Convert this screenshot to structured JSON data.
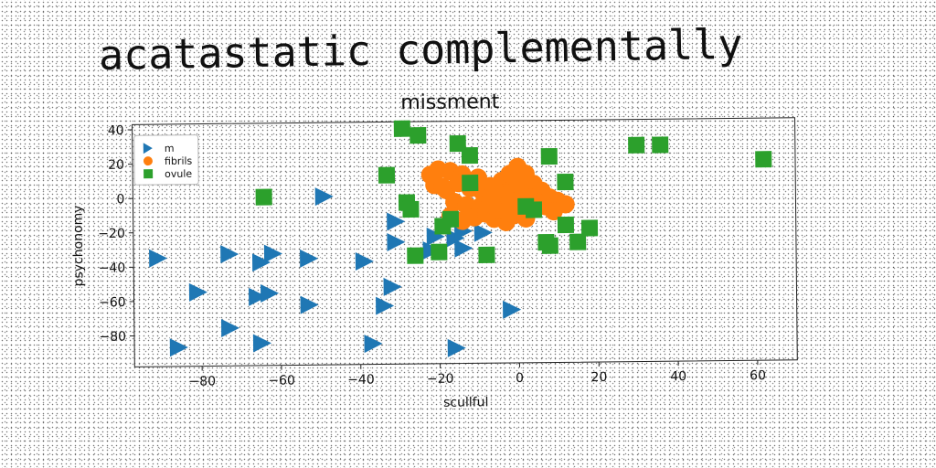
{
  "page_title": "acatastatic complementally",
  "chart_data": {
    "type": "scatter",
    "title": "missment",
    "xlabel": "scullful",
    "ylabel": "psychonomy",
    "xlim": [
      -97,
      70
    ],
    "ylim": [
      -98,
      43
    ],
    "xticks": [
      -80,
      -60,
      -40,
      -20,
      0,
      20,
      40,
      60
    ],
    "yticks": [
      40,
      20,
      0,
      -20,
      -40,
      -60,
      -80
    ],
    "grid": false,
    "legend_position": "top-left",
    "series": [
      {
        "name": "m",
        "marker": "triangle-right",
        "color": "#1f77b4",
        "points": [
          [
            -49,
            0
          ],
          [
            -31,
            -15
          ],
          [
            -31,
            -27
          ],
          [
            -22,
            -32
          ],
          [
            -16,
            -25
          ],
          [
            -14,
            -21
          ],
          [
            -9,
            -22
          ],
          [
            -14,
            -31
          ],
          [
            -91,
            -35
          ],
          [
            -73,
            -33
          ],
          [
            -62,
            -33
          ],
          [
            -65,
            -38
          ],
          [
            -53,
            -36
          ],
          [
            -39,
            -38
          ],
          [
            -81,
            -55
          ],
          [
            -66,
            -58
          ],
          [
            -63,
            -56
          ],
          [
            -32,
            -53
          ],
          [
            -34,
            -64
          ],
          [
            -53,
            -63
          ],
          [
            -73,
            -76
          ],
          [
            -2,
            -67
          ],
          [
            -86,
            -87
          ],
          [
            -65,
            -85
          ],
          [
            -37,
            -86
          ],
          [
            -16,
            -89
          ],
          [
            -21,
            -24
          ]
        ]
      },
      {
        "name": "fibrils",
        "marker": "circle",
        "color": "#ff7f0e",
        "points": [
          [
            -22,
            12
          ],
          [
            -20,
            15
          ],
          [
            -17,
            14
          ],
          [
            -14,
            12
          ],
          [
            -21,
            6
          ],
          [
            -18,
            3
          ],
          [
            -15,
            7
          ],
          [
            -12,
            4
          ],
          [
            -9,
            2
          ],
          [
            -7,
            5
          ],
          [
            -4,
            8
          ],
          [
            -2,
            12
          ],
          [
            0,
            16
          ],
          [
            2,
            12
          ],
          [
            4,
            6
          ],
          [
            6,
            2
          ],
          [
            8,
            -2
          ],
          [
            10,
            -4
          ],
          [
            12,
            -6
          ],
          [
            -16,
            -4
          ],
          [
            -13,
            -6
          ],
          [
            -11,
            -8
          ],
          [
            -9,
            -6
          ],
          [
            -7,
            -3
          ],
          [
            -5,
            -1
          ],
          [
            -3,
            1
          ],
          [
            -1,
            3
          ],
          [
            1,
            0
          ],
          [
            3,
            -2
          ],
          [
            5,
            -5
          ],
          [
            7,
            -7
          ],
          [
            9,
            -10
          ],
          [
            -17,
            -12
          ],
          [
            -14,
            -15
          ],
          [
            -11,
            -13
          ],
          [
            -8,
            -11
          ],
          [
            -6,
            -14
          ],
          [
            -3,
            -16
          ],
          [
            -1,
            -12
          ],
          [
            1,
            -10
          ],
          [
            3,
            -8
          ],
          [
            -5,
            -9
          ],
          [
            -19,
            5
          ],
          [
            -10,
            10
          ],
          [
            0,
            6
          ],
          [
            2,
            -14
          ],
          [
            -6,
            4
          ],
          [
            -2,
            -4
          ]
        ]
      },
      {
        "name": "ovule",
        "marker": "square",
        "color": "#2ca02c",
        "points": [
          [
            -29,
            39
          ],
          [
            -25,
            35
          ],
          [
            -15,
            30
          ],
          [
            -12,
            23
          ],
          [
            -33,
            12
          ],
          [
            -12,
            7
          ],
          [
            -28,
            -4
          ],
          [
            -27,
            -8
          ],
          [
            -64,
            0
          ],
          [
            8,
            22
          ],
          [
            30,
            28
          ],
          [
            36,
            28
          ],
          [
            62,
            19
          ],
          [
            12,
            7
          ],
          [
            2,
            -7
          ],
          [
            4,
            -9
          ],
          [
            -19,
            -18
          ],
          [
            -17,
            -14
          ],
          [
            12,
            -18
          ],
          [
            18,
            -20
          ],
          [
            15,
            -28
          ],
          [
            7,
            -28
          ],
          [
            8,
            -30
          ],
          [
            -26,
            -35
          ],
          [
            -20,
            -33
          ],
          [
            -8,
            -35
          ]
        ]
      }
    ]
  }
}
